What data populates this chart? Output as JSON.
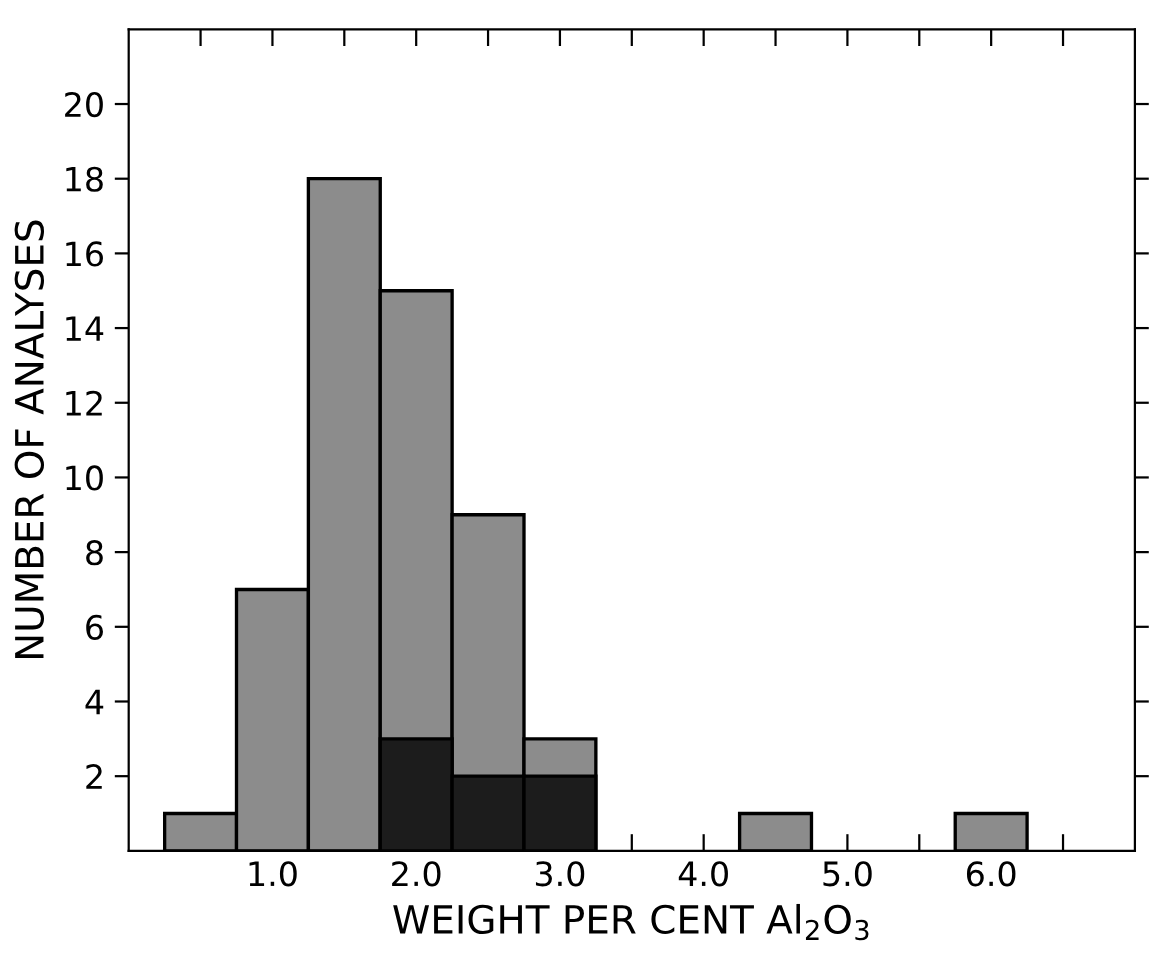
{
  "chart_data": {
    "type": "histogram",
    "xlabel": "WEIGHT PER CENT Al$_{2}$O$_{3}$",
    "ylabel": "NUMBER OF ANALYSES",
    "bins": [
      0.25,
      0.75,
      1.25,
      1.75,
      2.25,
      2.75,
      3.25,
      3.75,
      4.25,
      4.75,
      5.25,
      5.75,
      6.25
    ],
    "series": [
      {
        "color": "#8c8c8c",
        "values": [
          1,
          7,
          18,
          15,
          9,
          3,
          0,
          0,
          1,
          0,
          0,
          1
        ]
      },
      {
        "color": "#1c1c1c",
        "values": [
          0,
          0,
          0,
          3,
          2,
          2,
          0,
          0,
          0,
          0,
          0,
          0
        ]
      }
    ],
    "xlim": [
      0,
      7
    ],
    "ylim": [
      0,
      22
    ],
    "xticks": [
      {
        "value": 0.5,
        "label": null
      },
      {
        "value": 1,
        "label": "1.0"
      },
      {
        "value": 1.5,
        "label": null
      },
      {
        "value": 2,
        "label": "2.0"
      },
      {
        "value": 2.5,
        "label": null
      },
      {
        "value": 3,
        "label": "3.0"
      },
      {
        "value": 3.5,
        "label": null
      },
      {
        "value": 4,
        "label": "4.0"
      },
      {
        "value": 4.5,
        "label": null
      },
      {
        "value": 5,
        "label": "5.0"
      },
      {
        "value": 5.5,
        "label": null
      },
      {
        "value": 6,
        "label": "6.0"
      },
      {
        "value": 6.5,
        "label": null
      }
    ],
    "yticks": [
      2,
      4,
      6,
      8,
      10,
      12,
      14,
      16,
      18,
      20
    ],
    "grid": false,
    "legend": false
  }
}
